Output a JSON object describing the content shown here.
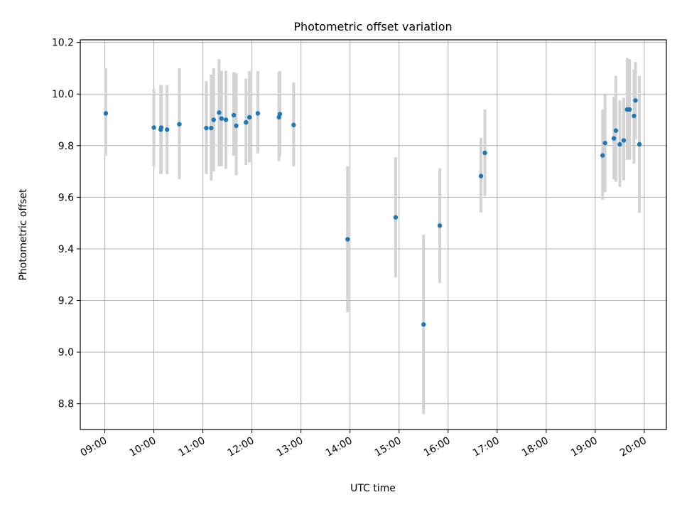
{
  "chart_data": {
    "type": "scatter",
    "title": "Photometric offset variation",
    "xlabel": "UTC time",
    "ylabel": "Photometric offset",
    "x_unit": "hours UTC",
    "xlim": [
      8.5,
      20.45
    ],
    "ylim": [
      8.7,
      10.21
    ],
    "x_ticks": [
      {
        "value": 9,
        "label": "09:00"
      },
      {
        "value": 10,
        "label": "10:00"
      },
      {
        "value": 11,
        "label": "11:00"
      },
      {
        "value": 12,
        "label": "12:00"
      },
      {
        "value": 13,
        "label": "13:00"
      },
      {
        "value": 14,
        "label": "14:00"
      },
      {
        "value": 15,
        "label": "15:00"
      },
      {
        "value": 16,
        "label": "16:00"
      },
      {
        "value": 17,
        "label": "17:00"
      },
      {
        "value": 18,
        "label": "18:00"
      },
      {
        "value": 19,
        "label": "19:00"
      },
      {
        "value": 20,
        "label": "20:00"
      }
    ],
    "y_ticks": [
      {
        "value": 8.8,
        "label": "8.8"
      },
      {
        "value": 9.0,
        "label": "9.0"
      },
      {
        "value": 9.2,
        "label": "9.2"
      },
      {
        "value": 9.4,
        "label": "9.4"
      },
      {
        "value": 9.6,
        "label": "9.6"
      },
      {
        "value": 9.8,
        "label": "9.8"
      },
      {
        "value": 10.0,
        "label": "10.0"
      },
      {
        "value": 10.2,
        "label": "10.2"
      }
    ],
    "grid": true,
    "marker_color": "#1f77b4",
    "errorbar_color": "#d3d3d3",
    "points": [
      {
        "x": 9.02,
        "y": 9.925,
        "ylo": 9.76,
        "yhi": 10.1
      },
      {
        "x": 10.0,
        "y": 9.87,
        "ylo": 9.72,
        "yhi": 10.02
      },
      {
        "x": 10.14,
        "y": 9.862,
        "ylo": 9.69,
        "yhi": 10.035
      },
      {
        "x": 10.15,
        "y": 9.87,
        "ylo": 9.69,
        "yhi": 10.035
      },
      {
        "x": 10.27,
        "y": 9.862,
        "ylo": 9.69,
        "yhi": 10.035
      },
      {
        "x": 10.52,
        "y": 9.883,
        "ylo": 9.67,
        "yhi": 10.1
      },
      {
        "x": 11.07,
        "y": 9.868,
        "ylo": 9.69,
        "yhi": 10.05
      },
      {
        "x": 11.17,
        "y": 9.868,
        "ylo": 9.665,
        "yhi": 10.075
      },
      {
        "x": 11.22,
        "y": 9.9,
        "ylo": 9.7,
        "yhi": 10.1
      },
      {
        "x": 11.33,
        "y": 9.928,
        "ylo": 9.72,
        "yhi": 10.135
      },
      {
        "x": 11.38,
        "y": 9.905,
        "ylo": 9.72,
        "yhi": 10.09
      },
      {
        "x": 11.47,
        "y": 9.9,
        "ylo": 9.71,
        "yhi": 10.09
      },
      {
        "x": 11.63,
        "y": 9.918,
        "ylo": 9.76,
        "yhi": 10.085
      },
      {
        "x": 11.68,
        "y": 9.877,
        "ylo": 9.685,
        "yhi": 10.08
      },
      {
        "x": 11.88,
        "y": 9.89,
        "ylo": 9.725,
        "yhi": 10.06
      },
      {
        "x": 11.95,
        "y": 9.91,
        "ylo": 9.735,
        "yhi": 10.09
      },
      {
        "x": 12.12,
        "y": 9.925,
        "ylo": 9.77,
        "yhi": 10.088
      },
      {
        "x": 12.55,
        "y": 9.91,
        "ylo": 9.74,
        "yhi": 10.085
      },
      {
        "x": 12.57,
        "y": 9.922,
        "ylo": 9.76,
        "yhi": 10.088
      },
      {
        "x": 12.85,
        "y": 9.88,
        "ylo": 9.72,
        "yhi": 10.045
      },
      {
        "x": 13.95,
        "y": 9.437,
        "ylo": 9.155,
        "yhi": 9.72
      },
      {
        "x": 14.93,
        "y": 9.522,
        "ylo": 9.29,
        "yhi": 9.755
      },
      {
        "x": 15.5,
        "y": 9.107,
        "ylo": 8.76,
        "yhi": 9.455
      },
      {
        "x": 15.83,
        "y": 9.49,
        "ylo": 9.268,
        "yhi": 9.712
      },
      {
        "x": 16.67,
        "y": 9.682,
        "ylo": 9.54,
        "yhi": 9.83
      },
      {
        "x": 16.75,
        "y": 9.772,
        "ylo": 9.605,
        "yhi": 9.94
      },
      {
        "x": 19.15,
        "y": 9.762,
        "ylo": 9.59,
        "yhi": 9.94
      },
      {
        "x": 19.2,
        "y": 9.81,
        "ylo": 9.62,
        "yhi": 10.0
      },
      {
        "x": 19.38,
        "y": 9.828,
        "ylo": 9.67,
        "yhi": 9.99
      },
      {
        "x": 19.42,
        "y": 9.858,
        "ylo": 9.66,
        "yhi": 10.07
      },
      {
        "x": 19.5,
        "y": 9.805,
        "ylo": 9.64,
        "yhi": 9.975
      },
      {
        "x": 19.58,
        "y": 9.82,
        "ylo": 9.665,
        "yhi": 9.985
      },
      {
        "x": 19.65,
        "y": 9.94,
        "ylo": 9.745,
        "yhi": 10.14
      },
      {
        "x": 19.7,
        "y": 9.94,
        "ylo": 9.745,
        "yhi": 10.135
      },
      {
        "x": 19.79,
        "y": 9.915,
        "ylo": 9.73,
        "yhi": 10.095
      },
      {
        "x": 19.82,
        "y": 9.975,
        "ylo": 9.825,
        "yhi": 10.125
      },
      {
        "x": 19.9,
        "y": 9.805,
        "ylo": 9.54,
        "yhi": 10.07
      }
    ]
  }
}
